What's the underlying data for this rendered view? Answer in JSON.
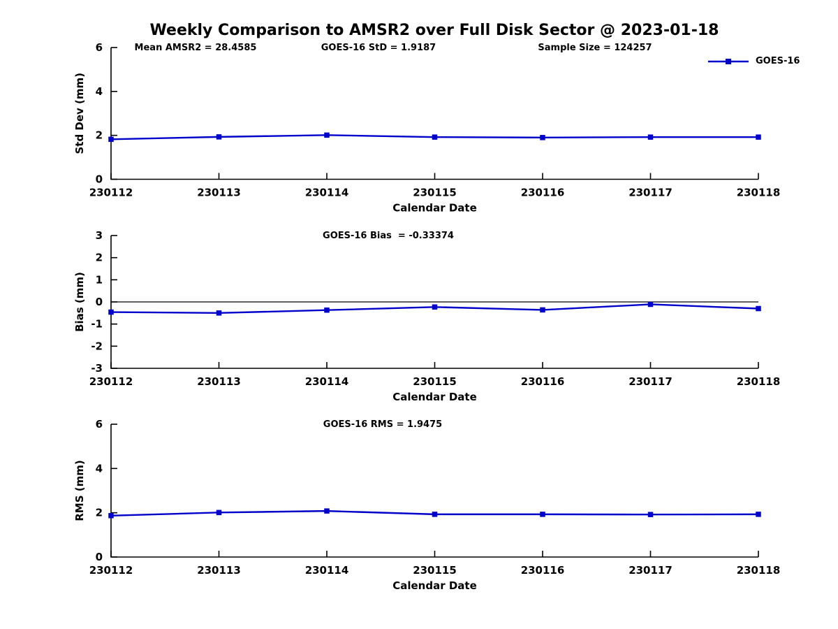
{
  "figure": {
    "title": "Weekly Comparison to AMSR2 over Full Disk Sector @ 2023-01-18",
    "background_color": "#ffffff",
    "axis_color": "#000000",
    "line_color": "#0000cc",
    "legend": {
      "label": "GOES-16",
      "position": "top-right"
    }
  },
  "chart_data": [
    {
      "type": "line",
      "id": "std-dev",
      "x": [
        "230112",
        "230113",
        "230114",
        "230115",
        "230116",
        "230117",
        "230118"
      ],
      "series": [
        {
          "name": "GOES-16",
          "values": [
            1.82,
            1.93,
            2.01,
            1.92,
            1.9,
            1.92,
            1.92
          ]
        }
      ],
      "xlabel": "Calendar Date",
      "ylabel": "Std Dev (mm)",
      "ylim": [
        0,
        6
      ],
      "yticks": [
        0,
        2,
        4,
        6
      ],
      "zero_line": false,
      "grid": false,
      "annotations": [
        {
          "text": "Mean AMSR2 = 28.4585",
          "x": 280
        },
        {
          "text": "GOES-16 StD = 1.9187",
          "x": 542
        },
        {
          "text": "Sample Size = 124257",
          "x": 852
        }
      ]
    },
    {
      "type": "line",
      "id": "bias",
      "x": [
        "230112",
        "230113",
        "230114",
        "230115",
        "230116",
        "230117",
        "230118"
      ],
      "series": [
        {
          "name": "GOES-16",
          "values": [
            -0.46,
            -0.5,
            -0.37,
            -0.23,
            -0.36,
            -0.11,
            -0.3
          ]
        }
      ],
      "xlabel": "Calendar Date",
      "ylabel": "Bias (mm)",
      "ylim": [
        -3,
        3
      ],
      "yticks": [
        -3,
        -2,
        -1,
        0,
        1,
        2,
        3
      ],
      "zero_line": true,
      "grid": false,
      "annotations": [
        {
          "text": "GOES-16 Bias  = -0.33374",
          "x": 556
        }
      ]
    },
    {
      "type": "line",
      "id": "rms",
      "x": [
        "230112",
        "230113",
        "230114",
        "230115",
        "230116",
        "230117",
        "230118"
      ],
      "series": [
        {
          "name": "GOES-16",
          "values": [
            1.87,
            2.01,
            2.08,
            1.93,
            1.93,
            1.92,
            1.93
          ]
        }
      ],
      "xlabel": "Calendar Date",
      "ylabel": "RMS (mm)",
      "ylim": [
        0,
        6
      ],
      "yticks": [
        0,
        2,
        4,
        6
      ],
      "zero_line": false,
      "grid": false,
      "annotations": [
        {
          "text": "GOES-16 RMS = 1.9475",
          "x": 548
        }
      ]
    }
  ]
}
